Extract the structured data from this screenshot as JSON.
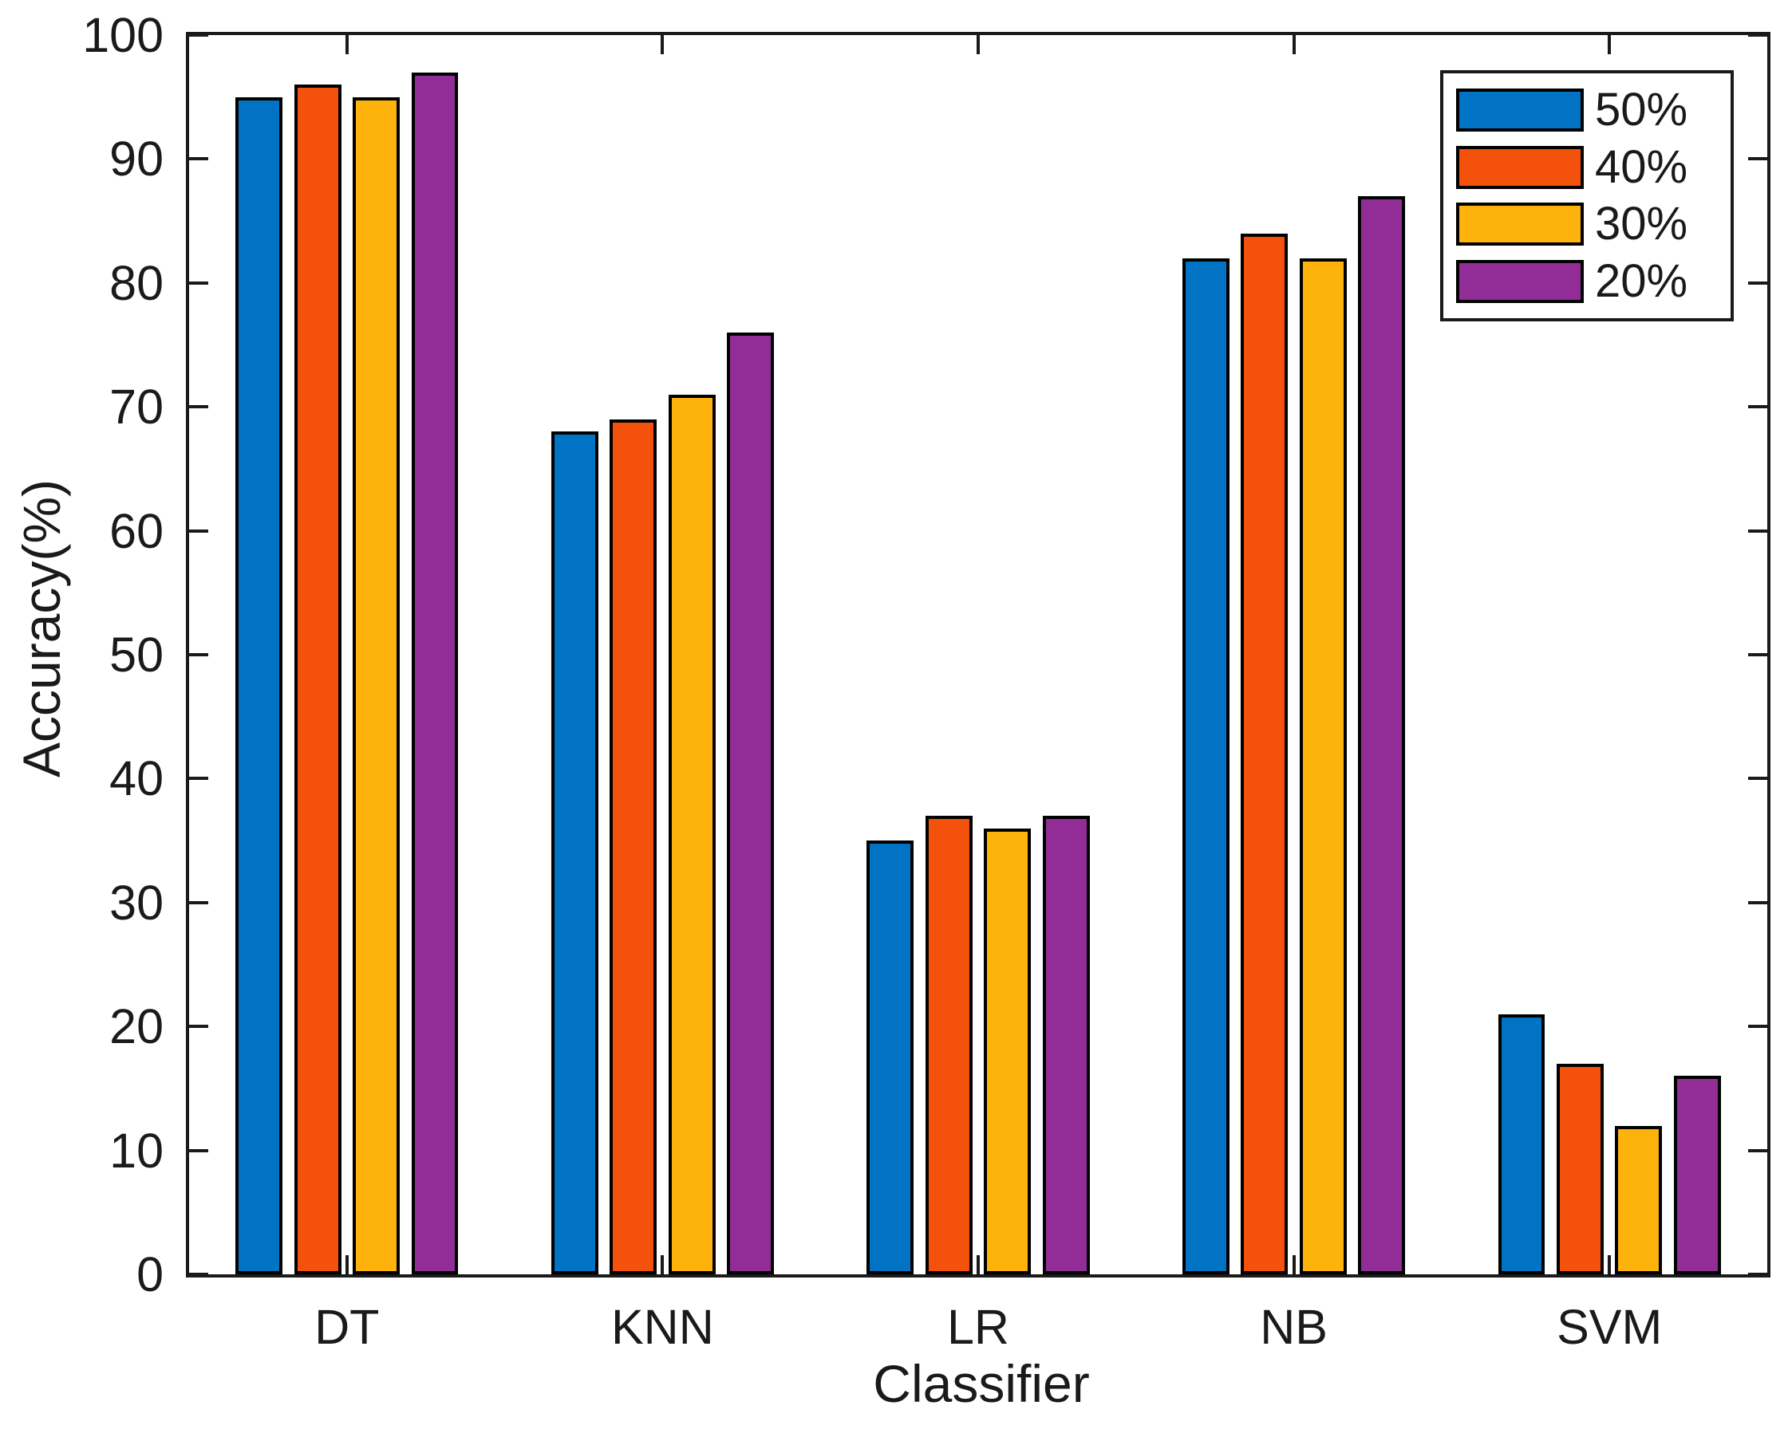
{
  "chart_data": {
    "type": "bar",
    "title": "",
    "xlabel": "Classifier",
    "ylabel": "Accuracy(%)",
    "categories": [
      "DT",
      "KNN",
      "LR",
      "NB",
      "SVM"
    ],
    "series": [
      {
        "name": "50%",
        "color": "#0073C4",
        "values": [
          95,
          68,
          35,
          82,
          21
        ]
      },
      {
        "name": "40%",
        "color": "#F4510C",
        "values": [
          96,
          69,
          37,
          84,
          17
        ]
      },
      {
        "name": "30%",
        "color": "#FDB30C",
        "values": [
          95,
          71,
          36,
          82,
          12
        ]
      },
      {
        "name": "20%",
        "color": "#922D98",
        "values": [
          97,
          76,
          37,
          87,
          16
        ]
      }
    ],
    "ylim": [
      0,
      100
    ],
    "yticks": [
      0,
      10,
      20,
      30,
      40,
      50,
      60,
      70,
      80,
      90,
      100
    ],
    "grid": false,
    "legend_position": "top-right",
    "legend_entries": [
      "50%",
      "40%",
      "30%",
      "20%"
    ],
    "axis_color": "#1a1a1a",
    "bar_edge_color": "#000000",
    "background_color": "#ffffff"
  }
}
